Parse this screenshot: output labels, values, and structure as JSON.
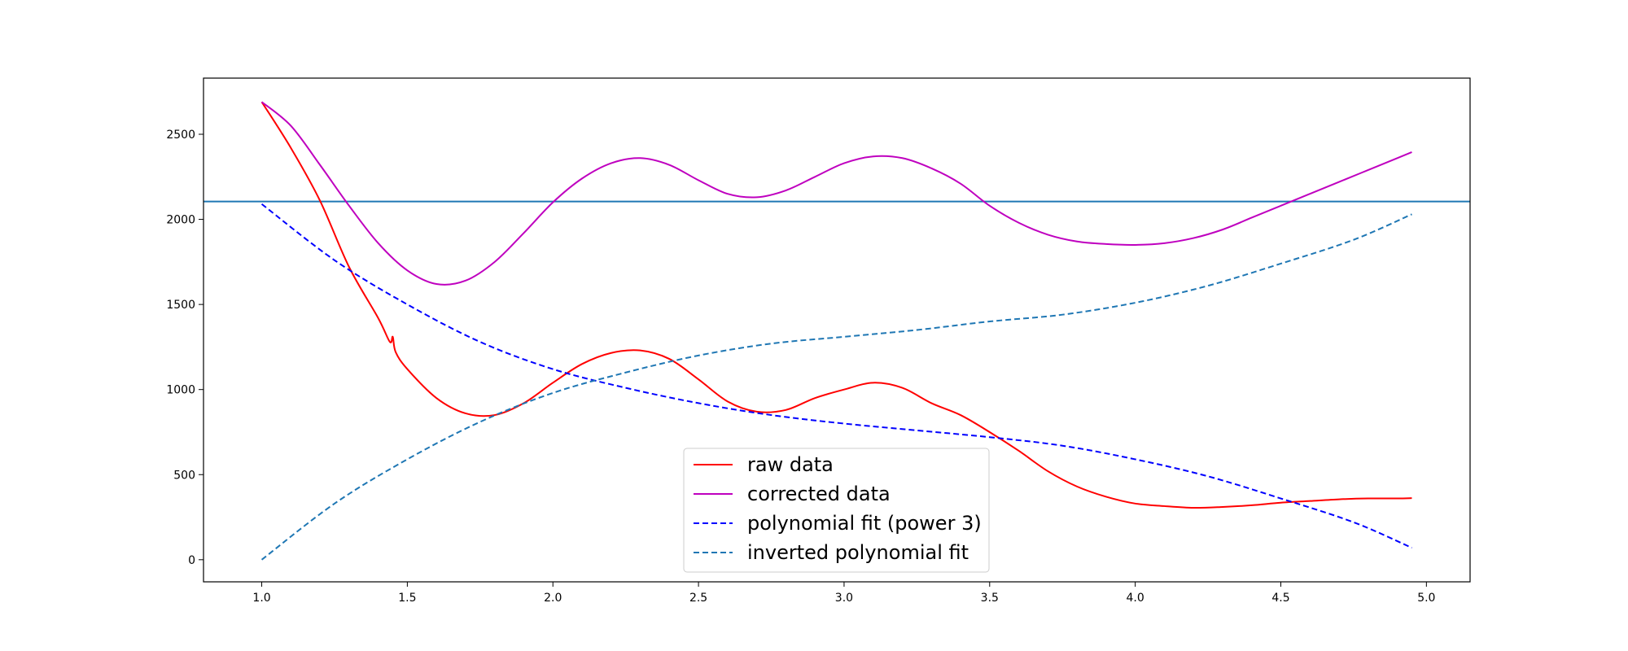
{
  "chart_data": {
    "type": "line",
    "title": "",
    "xlabel": "",
    "ylabel": "",
    "xlim": [
      0.8,
      5.15
    ],
    "ylim": [
      -130,
      2830
    ],
    "xticks": [
      1.0,
      1.5,
      2.0,
      2.5,
      3.0,
      3.5,
      4.0,
      4.5,
      5.0
    ],
    "xtick_labels": [
      "1.0",
      "1.5",
      "2.0",
      "2.5",
      "3.0",
      "3.5",
      "4.0",
      "4.5",
      "5.0"
    ],
    "yticks": [
      0,
      500,
      1000,
      1500,
      2000,
      2500
    ],
    "ytick_labels": [
      "0",
      "500",
      "1000",
      "1500",
      "2000",
      "2500"
    ],
    "grid": false,
    "legend_position": "bottom-center",
    "hline": {
      "y": 2105,
      "color": "#1f77b4"
    },
    "series": [
      {
        "name": "raw data",
        "color": "#ff0000",
        "style": "solid",
        "points": [
          [
            1.0,
            2690
          ],
          [
            1.1,
            2420
          ],
          [
            1.2,
            2110
          ],
          [
            1.3,
            1720
          ],
          [
            1.4,
            1420
          ],
          [
            1.44,
            1280
          ],
          [
            1.45,
            1310
          ],
          [
            1.46,
            1220
          ],
          [
            1.5,
            1120
          ],
          [
            1.6,
            950
          ],
          [
            1.7,
            860
          ],
          [
            1.8,
            850
          ],
          [
            1.9,
            920
          ],
          [
            2.0,
            1040
          ],
          [
            2.1,
            1150
          ],
          [
            2.2,
            1215
          ],
          [
            2.3,
            1230
          ],
          [
            2.4,
            1180
          ],
          [
            2.5,
            1060
          ],
          [
            2.6,
            930
          ],
          [
            2.7,
            870
          ],
          [
            2.8,
            880
          ],
          [
            2.9,
            950
          ],
          [
            3.0,
            1000
          ],
          [
            3.1,
            1040
          ],
          [
            3.2,
            1010
          ],
          [
            3.3,
            920
          ],
          [
            3.4,
            850
          ],
          [
            3.5,
            750
          ],
          [
            3.6,
            640
          ],
          [
            3.7,
            520
          ],
          [
            3.8,
            430
          ],
          [
            3.9,
            370
          ],
          [
            4.0,
            330
          ],
          [
            4.1,
            315
          ],
          [
            4.2,
            305
          ],
          [
            4.3,
            310
          ],
          [
            4.4,
            320
          ],
          [
            4.5,
            335
          ],
          [
            4.6,
            345
          ],
          [
            4.7,
            355
          ],
          [
            4.8,
            360
          ],
          [
            4.9,
            360
          ],
          [
            4.95,
            362
          ]
        ]
      },
      {
        "name": "corrected data",
        "color": "#bf00bf",
        "style": "solid",
        "points": [
          [
            1.0,
            2690
          ],
          [
            1.1,
            2550
          ],
          [
            1.2,
            2320
          ],
          [
            1.3,
            2080
          ],
          [
            1.4,
            1860
          ],
          [
            1.5,
            1700
          ],
          [
            1.6,
            1620
          ],
          [
            1.7,
            1640
          ],
          [
            1.8,
            1750
          ],
          [
            1.9,
            1920
          ],
          [
            2.0,
            2100
          ],
          [
            2.1,
            2240
          ],
          [
            2.2,
            2330
          ],
          [
            2.3,
            2360
          ],
          [
            2.4,
            2320
          ],
          [
            2.5,
            2230
          ],
          [
            2.6,
            2150
          ],
          [
            2.7,
            2130
          ],
          [
            2.8,
            2170
          ],
          [
            2.9,
            2250
          ],
          [
            3.0,
            2330
          ],
          [
            3.1,
            2370
          ],
          [
            3.2,
            2360
          ],
          [
            3.3,
            2300
          ],
          [
            3.4,
            2210
          ],
          [
            3.5,
            2080
          ],
          [
            3.6,
            1980
          ],
          [
            3.7,
            1910
          ],
          [
            3.8,
            1870
          ],
          [
            3.9,
            1855
          ],
          [
            4.0,
            1850
          ],
          [
            4.1,
            1860
          ],
          [
            4.2,
            1890
          ],
          [
            4.3,
            1940
          ],
          [
            4.4,
            2010
          ],
          [
            4.5,
            2080
          ],
          [
            4.6,
            2150
          ],
          [
            4.7,
            2220
          ],
          [
            4.8,
            2290
          ],
          [
            4.9,
            2360
          ],
          [
            4.95,
            2395
          ]
        ]
      },
      {
        "name": "polynomial fit (power 3)",
        "color": "#0000ff",
        "style": "dashed",
        "points": [
          [
            1.0,
            2090
          ],
          [
            1.25,
            1760
          ],
          [
            1.5,
            1500
          ],
          [
            1.75,
            1280
          ],
          [
            2.0,
            1120
          ],
          [
            2.25,
            1010
          ],
          [
            2.5,
            920
          ],
          [
            2.75,
            850
          ],
          [
            3.0,
            800
          ],
          [
            3.25,
            760
          ],
          [
            3.5,
            720
          ],
          [
            3.75,
            670
          ],
          [
            4.0,
            590
          ],
          [
            4.25,
            490
          ],
          [
            4.5,
            360
          ],
          [
            4.75,
            220
          ],
          [
            4.95,
            70
          ]
        ]
      },
      {
        "name": "inverted polynomial fit",
        "color": "#1f77b4",
        "style": "dashed",
        "points": [
          [
            1.0,
            0
          ],
          [
            1.25,
            330
          ],
          [
            1.5,
            590
          ],
          [
            1.75,
            810
          ],
          [
            2.0,
            980
          ],
          [
            2.25,
            1100
          ],
          [
            2.5,
            1200
          ],
          [
            2.75,
            1270
          ],
          [
            3.0,
            1310
          ],
          [
            3.25,
            1350
          ],
          [
            3.5,
            1400
          ],
          [
            3.75,
            1440
          ],
          [
            4.0,
            1510
          ],
          [
            4.25,
            1610
          ],
          [
            4.5,
            1740
          ],
          [
            4.75,
            1880
          ],
          [
            4.95,
            2030
          ]
        ]
      }
    ]
  }
}
